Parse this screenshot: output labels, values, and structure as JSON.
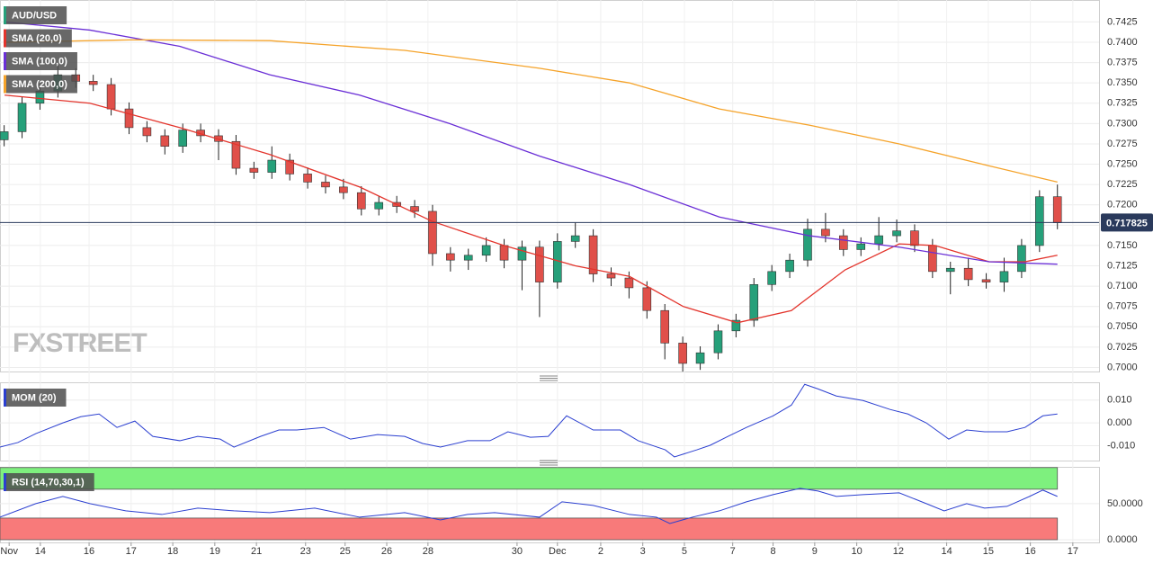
{
  "chart_data": [
    {
      "type": "candlestick",
      "title": "AUD/USD",
      "watermark": "FXSTREET",
      "up_color": "#26a07a",
      "down_color": "#e0504a",
      "x": [
        0.1,
        0.53,
        0.96,
        1.39,
        1.82,
        2.24,
        2.67,
        3.1,
        3.53,
        3.96,
        4.39,
        4.82,
        5.25,
        5.67,
        6.1,
        6.53,
        6.96,
        7.39,
        7.82,
        8.25,
        8.68,
        9.1,
        9.53,
        9.96,
        10.39,
        10.82,
        11.25,
        11.68,
        12.11,
        12.54,
        12.96,
        13.39,
        13.82,
        14.25,
        14.68,
        15.11,
        15.54,
        15.97,
        16.4,
        16.82,
        17.25,
        17.68,
        18.11,
        18.54,
        18.97,
        19.4,
        19.83,
        20.26,
        20.68,
        21.11,
        21.54,
        21.97,
        22.4,
        22.83,
        23.26,
        23.69,
        24.12,
        24.54,
        24.97,
        25.4
      ],
      "open": [
        0.728,
        0.729,
        0.7325,
        0.734,
        0.736,
        0.7352,
        0.7348,
        0.7318,
        0.7295,
        0.7285,
        0.7272,
        0.7292,
        0.7285,
        0.7278,
        0.7245,
        0.724,
        0.7255,
        0.7238,
        0.7228,
        0.7222,
        0.7215,
        0.7195,
        0.7203,
        0.7198,
        0.7192,
        0.714,
        0.7132,
        0.7138,
        0.715,
        0.7132,
        0.7148,
        0.7105,
        0.7155,
        0.7162,
        0.7115,
        0.711,
        0.7098,
        0.707,
        0.703,
        0.7005,
        0.7018,
        0.7045,
        0.7058,
        0.7102,
        0.7118,
        0.7132,
        0.717,
        0.7162,
        0.7145,
        0.7152,
        0.7162,
        0.7168,
        0.715,
        0.7118,
        0.7122,
        0.7108,
        0.7105,
        0.7118,
        0.715,
        0.721
      ],
      "high": [
        0.7298,
        0.7333,
        0.7348,
        0.7372,
        0.7368,
        0.736,
        0.7356,
        0.7326,
        0.7303,
        0.7293,
        0.73,
        0.73,
        0.7293,
        0.7286,
        0.7253,
        0.7272,
        0.7263,
        0.7246,
        0.7236,
        0.7232,
        0.7223,
        0.7211,
        0.7211,
        0.7206,
        0.72,
        0.7148,
        0.7146,
        0.716,
        0.7158,
        0.7156,
        0.7156,
        0.7165,
        0.7178,
        0.717,
        0.7123,
        0.7118,
        0.7106,
        0.7078,
        0.7038,
        0.7026,
        0.7053,
        0.7066,
        0.711,
        0.7126,
        0.714,
        0.7183,
        0.719,
        0.717,
        0.716,
        0.7185,
        0.7182,
        0.7176,
        0.7158,
        0.713,
        0.7135,
        0.7116,
        0.7135,
        0.7158,
        0.7218,
        0.7225
      ],
      "low": [
        0.7272,
        0.7282,
        0.7317,
        0.7332,
        0.7344,
        0.734,
        0.731,
        0.7287,
        0.7277,
        0.7262,
        0.7264,
        0.7277,
        0.7255,
        0.7237,
        0.7232,
        0.7232,
        0.723,
        0.722,
        0.7214,
        0.7207,
        0.7187,
        0.7187,
        0.719,
        0.7184,
        0.7125,
        0.7118,
        0.712,
        0.713,
        0.7122,
        0.7095,
        0.7062,
        0.7097,
        0.7147,
        0.7105,
        0.71,
        0.7085,
        0.706,
        0.701,
        0.6995,
        0.6997,
        0.701,
        0.7037,
        0.705,
        0.7094,
        0.711,
        0.7124,
        0.7154,
        0.7137,
        0.7137,
        0.7144,
        0.7154,
        0.7142,
        0.711,
        0.709,
        0.71,
        0.7097,
        0.7093,
        0.711,
        0.7142,
        0.717
      ],
      "close": [
        0.729,
        0.7325,
        0.734,
        0.736,
        0.7352,
        0.7348,
        0.7318,
        0.7295,
        0.7285,
        0.7272,
        0.7292,
        0.7285,
        0.7278,
        0.7245,
        0.724,
        0.7255,
        0.7238,
        0.7228,
        0.7222,
        0.7215,
        0.7195,
        0.7203,
        0.7198,
        0.7192,
        0.714,
        0.7132,
        0.7138,
        0.715,
        0.7132,
        0.7148,
        0.7105,
        0.7155,
        0.7162,
        0.7115,
        0.711,
        0.7098,
        0.707,
        0.703,
        0.7005,
        0.7018,
        0.7045,
        0.7058,
        0.7102,
        0.7118,
        0.7132,
        0.717,
        0.7162,
        0.7145,
        0.7152,
        0.7162,
        0.7168,
        0.715,
        0.7118,
        0.7122,
        0.7108,
        0.7105,
        0.7118,
        0.715,
        0.721,
        0.7178
      ],
      "overlays": [
        {
          "name": "SMA (20,0)",
          "color": "#e3342c",
          "x": [
            0.11,
            2.16,
            4.32,
            6.48,
            8.64,
            10.37,
            12.1,
            13.82,
            15.12,
            16.41,
            17.71,
            19.01,
            20.3,
            21.6,
            22.46,
            23.76,
            24.62,
            25.4
          ],
          "values": [
            0.7335,
            0.7325,
            0.7295,
            0.7262,
            0.7222,
            0.718,
            0.715,
            0.7125,
            0.7112,
            0.7075,
            0.7055,
            0.707,
            0.712,
            0.7152,
            0.715,
            0.713,
            0.713,
            0.7138
          ]
        },
        {
          "name": "SMA (100,0)",
          "color": "#6a2fd6",
          "x": [
            0.11,
            2.16,
            4.32,
            6.48,
            8.64,
            10.8,
            12.96,
            15.12,
            17.28,
            19.44,
            21.6,
            23.76,
            25.4
          ],
          "values": [
            0.7425,
            0.7415,
            0.7395,
            0.736,
            0.7335,
            0.73,
            0.726,
            0.7225,
            0.7185,
            0.7162,
            0.7148,
            0.713,
            0.7127
          ]
        },
        {
          "name": "SMA (200,0)",
          "color": "#f5a32a",
          "x": [
            0.11,
            3.24,
            6.48,
            9.72,
            12.96,
            15.12,
            17.28,
            19.44,
            21.6,
            23.76,
            25.4
          ],
          "values": [
            0.74,
            0.7403,
            0.7402,
            0.739,
            0.7368,
            0.735,
            0.7318,
            0.7298,
            0.7275,
            0.7248,
            0.7228
          ]
        }
      ],
      "last_price": {
        "value": 0.717825,
        "label": "0.717825"
      },
      "last_price_color": "#2a3a5c",
      "xlim": [
        0,
        26.4
      ],
      "ylim": [
        0.6995,
        0.7452
      ],
      "yticks": [
        {
          "value": 0.7425,
          "label": "0.7425"
        },
        {
          "value": 0.74,
          "label": "0.7400"
        },
        {
          "value": 0.7375,
          "label": "0.7375"
        },
        {
          "value": 0.735,
          "label": "0.7350"
        },
        {
          "value": 0.7325,
          "label": "0.7325"
        },
        {
          "value": 0.73,
          "label": "0.7300"
        },
        {
          "value": 0.7275,
          "label": "0.7275"
        },
        {
          "value": 0.725,
          "label": "0.7250"
        },
        {
          "value": 0.7225,
          "label": "0.7225"
        },
        {
          "value": 0.72,
          "label": "0.7200"
        },
        {
          "value": 0.7175,
          "label": "0.7175"
        },
        {
          "value": 0.715,
          "label": "0.7150"
        },
        {
          "value": 0.7125,
          "label": "0.7125"
        },
        {
          "value": 0.71,
          "label": "0.7100"
        },
        {
          "value": 0.7075,
          "label": "0.7075"
        },
        {
          "value": 0.705,
          "label": "0.7050"
        },
        {
          "value": 0.7025,
          "label": "0.7025"
        },
        {
          "value": 0.7,
          "label": "0.7000"
        }
      ],
      "grid": true
    },
    {
      "type": "line",
      "series": [
        {
          "name": "MOM (20)",
          "color": "#2b3fd0",
          "x": [
            0,
            0.43,
            0.86,
            1.51,
            1.94,
            2.38,
            2.81,
            3.24,
            3.67,
            4.32,
            4.75,
            5.29,
            5.62,
            6.26,
            6.7,
            7.13,
            7.78,
            8.42,
            9.07,
            9.72,
            10.15,
            10.58,
            11.23,
            11.77,
            12.2,
            12.74,
            13.17,
            13.61,
            14.25,
            14.9,
            15.33,
            15.98,
            16.2,
            16.74,
            17.06,
            17.49,
            17.93,
            18.57,
            19.01,
            19.33,
            19.65,
            20.09,
            20.73,
            21.38,
            21.81,
            22.25,
            22.79,
            23.22,
            23.65,
            24.19,
            24.62,
            25.05,
            25.4
          ],
          "values": [
            -0.0106,
            -0.0086,
            -0.0047,
            0,
            0.0027,
            0.0039,
            -0.002,
            0.0008,
            -0.0059,
            -0.0078,
            -0.0059,
            -0.0071,
            -0.0106,
            -0.0059,
            -0.0031,
            -0.0031,
            -0.002,
            -0.0071,
            -0.0051,
            -0.0059,
            -0.009,
            -0.0106,
            -0.0078,
            -0.0078,
            -0.0039,
            -0.0063,
            -0.0059,
            0.0031,
            -0.0031,
            -0.0031,
            -0.0078,
            -0.0118,
            -0.0149,
            -0.0118,
            -0.0098,
            -0.0059,
            -0.002,
            0.0031,
            0.0078,
            0.0169,
            0.0149,
            0.0118,
            0.0098,
            0.0059,
            0.0039,
            0,
            -0.0071,
            -0.0031,
            -0.0039,
            -0.0039,
            -0.002,
            0.0031,
            0.0039
          ]
        }
      ],
      "xlim": [
        0,
        26.4
      ],
      "ylim": [
        -0.0165,
        0.0178
      ],
      "yticks": [
        {
          "value": 0.01,
          "label": "0.010"
        },
        {
          "value": 0,
          "label": "0.000"
        },
        {
          "value": -0.01,
          "label": "-0.010"
        }
      ],
      "grid": true
    },
    {
      "type": "line",
      "series": [
        {
          "name": "RSI (14,70,30,1)",
          "color": "#2b3fd0",
          "x": [
            0,
            0.86,
            1.51,
            2.16,
            3.02,
            3.89,
            4.75,
            5.62,
            6.48,
            7.56,
            8.64,
            9.72,
            10.58,
            11.23,
            11.88,
            12.96,
            13.5,
            14.25,
            15.12,
            15.77,
            16.09,
            16.63,
            17.28,
            17.93,
            18.57,
            19.22,
            19.65,
            20.09,
            20.73,
            21.6,
            22.25,
            22.68,
            23.22,
            23.65,
            24.19,
            24.73,
            25.05,
            25.4
          ],
          "values": [
            31.25,
            50,
            60,
            50,
            40,
            35,
            43.75,
            40,
            37.5,
            43.75,
            31.25,
            37.5,
            27.5,
            35,
            37.5,
            31.25,
            52.5,
            47.5,
            35,
            31.25,
            22.5,
            31.25,
            40,
            52.5,
            62.5,
            71.25,
            67.5,
            60,
            62.5,
            65,
            50,
            40,
            50,
            43.75,
            46.25,
            60,
            68.75,
            60
          ]
        }
      ],
      "bands": [
        {
          "range": [
            70,
            100
          ],
          "color": "#7ef07e"
        },
        {
          "range": [
            0,
            30
          ],
          "color": "#f87a7a"
        }
      ],
      "xlim": [
        0,
        26.4
      ],
      "ylim": [
        -3.75,
        101
      ],
      "yticks": [
        {
          "value": 50,
          "label": "50.0000"
        },
        {
          "value": 0,
          "label": "0.0000"
        }
      ],
      "xticks": [
        {
          "value": 0.22,
          "label": "Nov"
        },
        {
          "value": 0.97,
          "label": "14"
        },
        {
          "value": 2.14,
          "label": "16"
        },
        {
          "value": 3.15,
          "label": "17"
        },
        {
          "value": 4.15,
          "label": "18"
        },
        {
          "value": 5.16,
          "label": "19"
        },
        {
          "value": 6.16,
          "label": "21"
        },
        {
          "value": 7.34,
          "label": "23"
        },
        {
          "value": 8.29,
          "label": "25"
        },
        {
          "value": 9.29,
          "label": "26"
        },
        {
          "value": 10.28,
          "label": "28"
        },
        {
          "value": 12.42,
          "label": "30"
        },
        {
          "value": 13.39,
          "label": "Dec"
        },
        {
          "value": 14.43,
          "label": "2"
        },
        {
          "value": 15.44,
          "label": "3"
        },
        {
          "value": 16.44,
          "label": "5"
        },
        {
          "value": 17.6,
          "label": "7"
        },
        {
          "value": 18.57,
          "label": "8"
        },
        {
          "value": 19.57,
          "label": "9"
        },
        {
          "value": 20.58,
          "label": "10"
        },
        {
          "value": 21.58,
          "label": "12"
        },
        {
          "value": 22.74,
          "label": "14"
        },
        {
          "value": 23.74,
          "label": "15"
        },
        {
          "value": 24.75,
          "label": "16"
        },
        {
          "value": 25.77,
          "label": "17"
        }
      ],
      "grid": true
    }
  ]
}
